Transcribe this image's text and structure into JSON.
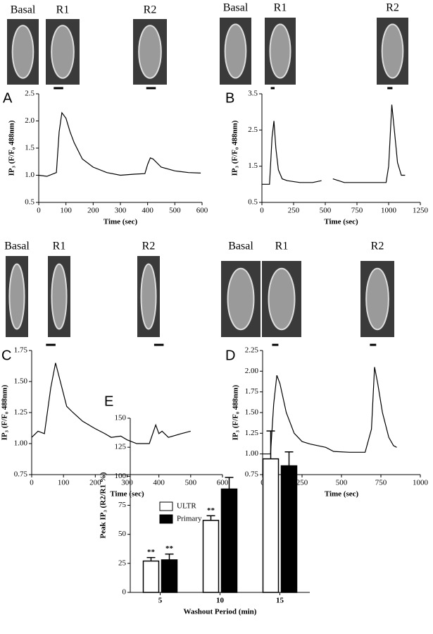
{
  "chart_data": [
    {
      "type": "line",
      "label": "A",
      "image_labels": [
        "Basal",
        "R1",
        "R2"
      ],
      "xlabel": "Time (sec)",
      "ylabel": "IP₃ (F/F₀ 488nm)",
      "x": [
        0,
        30,
        65,
        75,
        85,
        100,
        115,
        130,
        160,
        200,
        250,
        300,
        350,
        390,
        400,
        410,
        420,
        450,
        500,
        550,
        595
      ],
      "series": [
        {
          "color": "#000000",
          "values": [
            1.0,
            0.98,
            1.05,
            1.8,
            2.15,
            2.05,
            1.8,
            1.6,
            1.3,
            1.15,
            1.05,
            1.0,
            1.02,
            1.03,
            1.2,
            1.32,
            1.3,
            1.15,
            1.08,
            1.05,
            1.04
          ]
        }
      ],
      "stimuli": [
        [
          55,
          90
        ],
        [
          395,
          430
        ]
      ],
      "xlim": [
        0,
        600
      ],
      "xticks": [
        0,
        100,
        200,
        300,
        400,
        500,
        600
      ],
      "ylim": [
        0.5,
        2.5
      ],
      "yticks": [
        0.5,
        {
          "value": 1,
          "label": "1.0"
        },
        1.5,
        {
          "value": 2,
          "label": "2.0"
        },
        2.5
      ]
    },
    {
      "type": "line",
      "label": "B",
      "image_labels": [
        "Basal",
        "R1",
        "R2"
      ],
      "xlabel": "Time (sec)",
      "ylabel": "IP₃ (F/F₀ 488nm)",
      "x": [
        0,
        60,
        80,
        95,
        110,
        130,
        160,
        200,
        300,
        400,
        470,
        520,
        560,
        650,
        800,
        900,
        980,
        1000,
        1025,
        1045,
        1070,
        1100,
        1130
      ],
      "series": [
        {
          "color": "#000000",
          "values": [
            1.0,
            1.0,
            2.3,
            2.75,
            2.0,
            1.4,
            1.15,
            1.1,
            1.05,
            1.05,
            1.1,
            null,
            1.15,
            1.05,
            1.05,
            1.05,
            1.05,
            1.5,
            3.2,
            2.5,
            1.6,
            1.25,
            1.25
          ]
        }
      ],
      "stimuli": [
        [
          70,
          100
        ],
        [
          990,
          1030
        ]
      ],
      "xlim": [
        0,
        1250
      ],
      "xticks": [
        0,
        250,
        500,
        750,
        1000,
        1250
      ],
      "ylim": [
        0.5,
        3.5
      ],
      "yticks": [
        0.5,
        1.5,
        2.5,
        3.5
      ]
    },
    {
      "type": "line",
      "label": "C",
      "image_labels": [
        "Basal",
        "R1",
        "R2"
      ],
      "xlabel": "Time (sec)",
      "ylabel": "IP₃ (F/F₀ 488nm)",
      "x": [
        0,
        20,
        40,
        60,
        75,
        90,
        110,
        130,
        160,
        200,
        230,
        250,
        280,
        300,
        330,
        370,
        390,
        400,
        410,
        430,
        470,
        500
      ],
      "series": [
        {
          "color": "#000000",
          "values": [
            1.05,
            1.1,
            1.08,
            1.45,
            1.65,
            1.5,
            1.3,
            1.25,
            1.18,
            1.12,
            1.08,
            1.05,
            1.06,
            1.03,
            1.0,
            1.0,
            1.15,
            1.08,
            1.1,
            1.05,
            1.08,
            1.1
          ]
        }
      ],
      "stimuli": [
        [
          45,
          75
        ],
        [
          385,
          415
        ]
      ],
      "xlim": [
        0,
        600
      ],
      "xticks": [
        0,
        100,
        200,
        300,
        400,
        500,
        600
      ],
      "ylim": [
        0.75,
        1.75
      ],
      "yticks": [
        0.75,
        {
          "value": 1,
          "label": "1.00"
        },
        1.25,
        {
          "value": 1.5,
          "label": "1.50"
        },
        1.75
      ]
    },
    {
      "type": "line",
      "label": "D",
      "image_labels": [
        "Basal",
        "R1",
        "R2"
      ],
      "xlabel": "Time (sec)",
      "ylabel": "IP₃ (F/F₀ 488nm)",
      "x": [
        0,
        50,
        70,
        90,
        110,
        150,
        200,
        250,
        300,
        400,
        450,
        550,
        650,
        690,
        710,
        730,
        760,
        800,
        830,
        850
      ],
      "series": [
        {
          "color": "#000000",
          "values": [
            1.0,
            1.0,
            1.6,
            1.95,
            1.85,
            1.5,
            1.25,
            1.15,
            1.12,
            1.08,
            1.03,
            1.02,
            1.02,
            1.3,
            2.05,
            1.85,
            1.5,
            1.2,
            1.1,
            1.08
          ]
        }
      ],
      "stimuli": [
        [
          60,
          100
        ],
        [
          680,
          720
        ]
      ],
      "xlim": [
        0,
        1000
      ],
      "xticks": [
        0,
        250,
        500,
        750,
        1000
      ],
      "ylim": [
        0.75,
        2.25
      ],
      "yticks": [
        0.75,
        {
          "value": 1,
          "label": "1.00"
        },
        1.25,
        {
          "value": 1.5,
          "label": "1.50"
        },
        1.75,
        {
          "value": 2,
          "label": "2.00"
        },
        2.25
      ]
    },
    {
      "type": "bar",
      "label": "E",
      "xlabel": "Washout Period (min)",
      "ylabel": "Peak IP₃ (R2/R1 %)",
      "categories": [
        "5",
        "10",
        "15"
      ],
      "series": [
        {
          "name": "ULTR",
          "color": "#ffffff",
          "values": [
            27,
            62,
            115
          ],
          "errors": [
            3,
            4,
            24
          ],
          "value_labels": [
            "**",
            "**",
            null
          ]
        },
        {
          "name": "Primary",
          "color": "#000000",
          "values": [
            28,
            89,
            109
          ],
          "errors": [
            5,
            10,
            12
          ],
          "value_labels": [
            "**",
            null,
            null
          ]
        }
      ],
      "legend": "upper left",
      "ylim": [
        0,
        150
      ],
      "yticks": [
        0,
        25,
        50,
        75,
        100,
        125,
        150
      ]
    }
  ]
}
